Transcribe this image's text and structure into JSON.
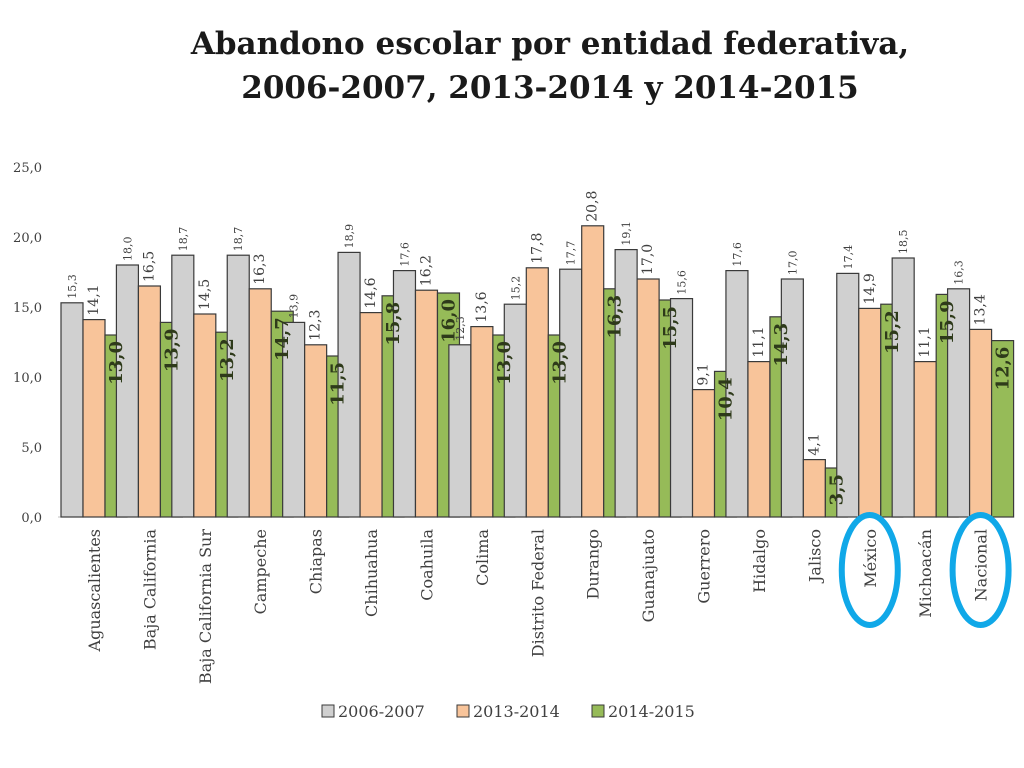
{
  "title_line1": "Abandono escolar por entidad federativa,",
  "title_line2": "2006-2007, 2013-2014 y 2014-2015",
  "colors": {
    "s2006": "#d0d0d0",
    "s2013": "#f8c49a",
    "s2014": "#96bb58",
    "highlight": "#10a8e8"
  },
  "chart_data": {
    "type": "bar",
    "title": "Abandono escolar por entidad federativa, 2006-2007, 2013-2014 y 2014-2015",
    "xlabel": "",
    "ylabel": "",
    "ylim": [
      0,
      25
    ],
    "yticks": [
      "0,0",
      "5,0",
      "10,0",
      "15,0",
      "20,0",
      "25,0"
    ],
    "grid": false,
    "legend": "bottom",
    "categories": [
      "Aguascalientes",
      "Baja California",
      "Baja California Sur",
      "Campeche",
      "Chiapas",
      "Chihuahua",
      "Coahuila",
      "Colima",
      "Distrito Federal",
      "Durango",
      "Guanajuato",
      "Guerrero",
      "Hidalgo",
      "Jalisco",
      "México",
      "Michoacán",
      "Nacional"
    ],
    "series": [
      {
        "name": "2006-2007",
        "values": [
          15.3,
          18.0,
          18.7,
          18.7,
          13.9,
          18.9,
          17.6,
          12.3,
          15.2,
          17.7,
          19.1,
          15.6,
          17.6,
          17.0,
          17.4,
          18.5,
          16.3
        ],
        "labels": [
          "15,3",
          "18,0",
          "18,7",
          "18,7",
          "13,9",
          "18,9",
          "17,6",
          "12,3",
          "15,2",
          "17,7",
          "19,1",
          "15,6",
          "17,6",
          "17,0",
          "17,4",
          "18,5",
          "16,3"
        ]
      },
      {
        "name": "2013-2014",
        "values": [
          14.1,
          16.5,
          14.5,
          16.3,
          12.3,
          14.6,
          16.2,
          13.6,
          17.8,
          20.8,
          17.0,
          9.1,
          11.1,
          4.1,
          14.9,
          11.1,
          13.4
        ],
        "labels": [
          "14,1",
          "16,5",
          "14,5",
          "16,3",
          "12,3",
          "14,6",
          "16,2",
          "13,6",
          "17,8",
          "20,8",
          "17,0",
          "9,1",
          "11,1",
          "4,1",
          "14,9",
          "11,1",
          "13,4"
        ]
      },
      {
        "name": "2014-2015",
        "values": [
          13.0,
          13.9,
          13.2,
          14.7,
          11.5,
          15.8,
          16.0,
          13.0,
          13.0,
          16.3,
          15.5,
          10.4,
          14.3,
          3.5,
          15.2,
          15.9,
          12.6
        ],
        "labels": [
          "13,0",
          "13,9",
          "13,2",
          "14,7",
          "11,5",
          "15,8",
          "16,0",
          "13,0",
          "13,0",
          "16,3",
          "15,5",
          "10,4",
          "14,3",
          "3,5",
          "15,2",
          "15,9",
          "12,6"
        ]
      }
    ],
    "highlighted_categories": [
      "México",
      "Nacional"
    ]
  }
}
